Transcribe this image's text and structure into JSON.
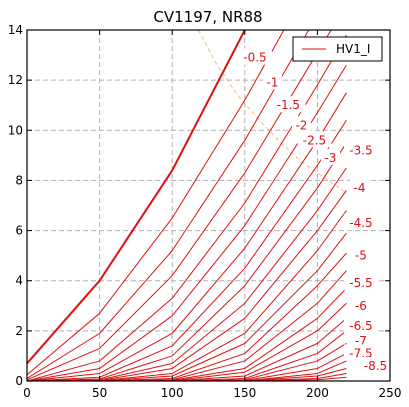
{
  "chart_data": {
    "type": "line",
    "title": "CV1197, NR88",
    "xlabel": "",
    "ylabel": "",
    "xlim": [
      0,
      250
    ],
    "ylim": [
      0,
      14
    ],
    "xticks": [
      0,
      50,
      100,
      150,
      200,
      250
    ],
    "yticks": [
      0,
      2,
      4,
      6,
      8,
      10,
      12,
      14
    ],
    "grid": true,
    "legend": {
      "placement": "top-right",
      "entries": [
        "HV1_I"
      ]
    },
    "colors": {
      "curves": "#dd1111",
      "dissipation": "#f0c070"
    },
    "reference_curve": {
      "type": "power-dissipation",
      "x": [
        118,
        130,
        145,
        160,
        175,
        190,
        205,
        220
      ],
      "y": [
        14,
        12.7,
        11.4,
        10.4,
        9.5,
        8.7,
        8.1,
        7.5
      ]
    },
    "series": [
      {
        "grid_v": "0",
        "x": [
          0,
          50,
          100,
          150
        ],
        "y": [
          0.7,
          4.0,
          8.4,
          14.0
        ]
      },
      {
        "grid_v": "-0.5",
        "x": [
          0,
          50,
          100,
          150,
          200
        ],
        "y": [
          0.25,
          2.7,
          6.5,
          11.2,
          16.4
        ]
      },
      {
        "grid_v": "-1",
        "x": [
          0,
          50,
          100,
          150,
          200
        ],
        "y": [
          0.1,
          1.9,
          5.2,
          9.6,
          14.6
        ]
      },
      {
        "grid_v": "-1.5",
        "x": [
          0,
          50,
          100,
          150,
          200,
          220
        ],
        "y": [
          0.05,
          1.3,
          4.2,
          8.3,
          13.1,
          15.0
        ]
      },
      {
        "grid_v": "-2",
        "x": [
          0,
          50,
          100,
          150,
          200,
          220
        ],
        "y": [
          0,
          0.8,
          3.3,
          7.1,
          11.8,
          13.8
        ]
      },
      {
        "grid_v": "-2.5",
        "x": [
          0,
          50,
          100,
          150,
          200,
          220
        ],
        "y": [
          0,
          0.5,
          2.6,
          6.2,
          10.7,
          12.6
        ]
      },
      {
        "grid_v": "-3",
        "x": [
          0,
          50,
          100,
          150,
          200,
          220
        ],
        "y": [
          0,
          0.3,
          1.9,
          5.3,
          9.6,
          11.5
        ]
      },
      {
        "grid_v": "-3.5",
        "x": [
          0,
          50,
          100,
          150,
          200,
          220
        ],
        "y": [
          0,
          0.15,
          1.4,
          4.5,
          8.6,
          10.4
        ]
      },
      {
        "grid_v": "-4",
        "x": [
          0,
          50,
          100,
          150,
          200,
          220
        ],
        "y": [
          0,
          0.08,
          1.0,
          3.8,
          7.7,
          9.5
        ]
      },
      {
        "grid_v": "-4.5",
        "x": [
          0,
          50,
          100,
          150,
          200,
          220
        ],
        "y": [
          0,
          0.04,
          0.7,
          3.1,
          6.8,
          8.5
        ]
      },
      {
        "grid_v": "-5",
        "x": [
          0,
          50,
          100,
          150,
          200,
          220
        ],
        "y": [
          0,
          0.02,
          0.5,
          2.5,
          6.0,
          7.6
        ]
      },
      {
        "grid_v": "-5.5",
        "x": [
          0,
          50,
          100,
          150,
          200,
          220
        ],
        "y": [
          0,
          0.01,
          0.3,
          1.9,
          5.2,
          6.8
        ]
      },
      {
        "grid_v": "-6",
        "x": [
          0,
          50,
          100,
          150,
          200,
          220
        ],
        "y": [
          0,
          0,
          0.2,
          1.5,
          4.4,
          5.9
        ]
      },
      {
        "grid_v": "-6.5",
        "x": [
          0,
          50,
          100,
          150,
          200,
          220
        ],
        "y": [
          0,
          0,
          0.1,
          1.1,
          3.8,
          5.1
        ]
      },
      {
        "grid_v": "-7",
        "x": [
          0,
          50,
          100,
          150,
          200,
          220
        ],
        "y": [
          0,
          0,
          0.05,
          0.8,
          3.1,
          4.4
        ]
      },
      {
        "grid_v": "-7.5",
        "x": [
          0,
          50,
          100,
          150,
          200,
          220
        ],
        "y": [
          0,
          0,
          0.03,
          0.5,
          2.5,
          3.7
        ]
      },
      {
        "grid_v": "-8",
        "x": [
          0,
          50,
          100,
          150,
          200,
          220
        ],
        "y": [
          0,
          0,
          0.01,
          0.35,
          2.0,
          3.1
        ]
      },
      {
        "grid_v": "-8.5",
        "x": [
          0,
          50,
          100,
          150,
          200,
          220
        ],
        "y": [
          0,
          0,
          0,
          0.2,
          1.5,
          2.5
        ]
      },
      {
        "grid_v": "-9",
        "x": [
          0,
          50,
          100,
          150,
          200,
          220
        ],
        "y": [
          0,
          0,
          0,
          0.1,
          1.1,
          2.0
        ]
      },
      {
        "grid_v": "-9.5",
        "x": [
          0,
          50,
          100,
          150,
          200,
          220
        ],
        "y": [
          0,
          0,
          0,
          0.05,
          0.8,
          1.5
        ]
      },
      {
        "grid_v": "-10",
        "x": [
          0,
          50,
          100,
          150,
          200,
          220
        ],
        "y": [
          0,
          0,
          0,
          0.02,
          0.5,
          1.1
        ]
      },
      {
        "grid_v": "-10.5",
        "x": [
          0,
          50,
          100,
          150,
          200,
          220
        ],
        "y": [
          0,
          0,
          0,
          0,
          0.3,
          0.8
        ]
      },
      {
        "grid_v": "-11",
        "x": [
          0,
          50,
          100,
          150,
          200,
          220
        ],
        "y": [
          0,
          0,
          0,
          0,
          0.2,
          0.5
        ]
      },
      {
        "grid_v": "-11.5",
        "x": [
          0,
          50,
          100,
          150,
          200,
          220
        ],
        "y": [
          0,
          0,
          0,
          0,
          0.1,
          0.3
        ]
      },
      {
        "grid_v": "-12",
        "x": [
          0,
          50,
          100,
          150,
          200,
          220
        ],
        "y": [
          0,
          0,
          0,
          0,
          0.05,
          0.15
        ]
      }
    ],
    "annotations": [
      {
        "text": "-0.5",
        "x": 157,
        "y": 12.9
      },
      {
        "text": "-1",
        "x": 169,
        "y": 11.9
      },
      {
        "text": "-1.5",
        "x": 180,
        "y": 11.0
      },
      {
        "text": "-2",
        "x": 189,
        "y": 10.2
      },
      {
        "text": "-2.5",
        "x": 198,
        "y": 9.6
      },
      {
        "text": "-3",
        "x": 209,
        "y": 8.9
      },
      {
        "text": "-3.5",
        "x": 230,
        "y": 9.2
      },
      {
        "text": "-4",
        "x": 229,
        "y": 7.7
      },
      {
        "text": "-4.5",
        "x": 230,
        "y": 6.3
      },
      {
        "text": "-5",
        "x": 230,
        "y": 5.0
      },
      {
        "text": "-5.5",
        "x": 230,
        "y": 3.9
      },
      {
        "text": "-6",
        "x": 230,
        "y": 3.0
      },
      {
        "text": "-6.5",
        "x": 230,
        "y": 2.2
      },
      {
        "text": "-7",
        "x": 230,
        "y": 1.6
      },
      {
        "text": "-7.5",
        "x": 230,
        "y": 1.1
      },
      {
        "text": "-8.5",
        "x": 240,
        "y": 0.6
      }
    ]
  }
}
